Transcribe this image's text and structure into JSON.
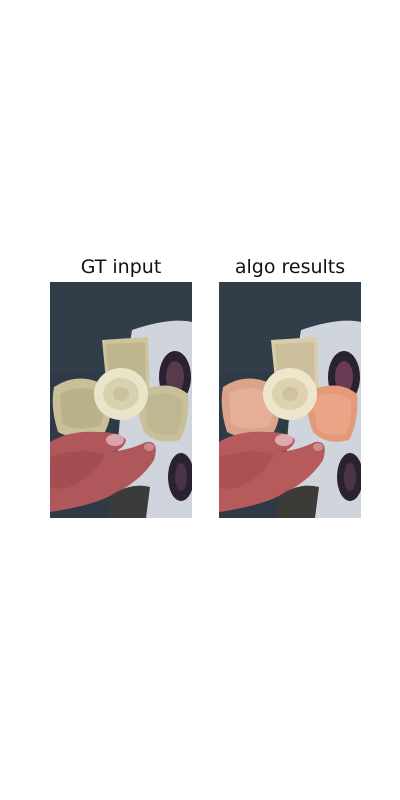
{
  "figure": {
    "panels": [
      {
        "title": "GT input",
        "image": "banana-held-in-hand-original"
      },
      {
        "title": "algo results",
        "image": "banana-held-in-hand-recolored-orange-peel"
      }
    ]
  },
  "colors": {
    "background": "#2e3b47",
    "hand": "#b0575c",
    "peel_original": "#c9c09a",
    "peel_result": "#e29a78",
    "flesh": "#e9e5c8",
    "cloth": "#cfd4dd",
    "print": "#2a2230"
  }
}
